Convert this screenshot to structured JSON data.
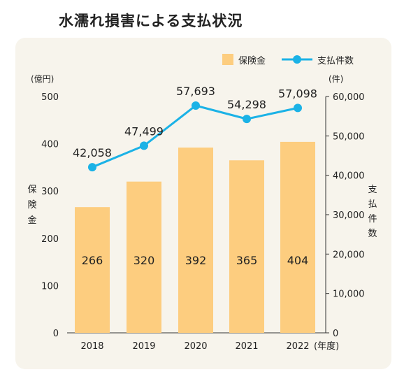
{
  "title": "水濡れ損害による支払状況",
  "chart_data": {
    "type": "bar+line",
    "categories": [
      "2018",
      "2019",
      "2020",
      "2021",
      "2022"
    ],
    "x_unit": "(年度)",
    "series": [
      {
        "name": "保険金",
        "type": "bar",
        "axis": "left",
        "values": [
          266,
          320,
          392,
          365,
          404
        ],
        "color": "#fdcd7f"
      },
      {
        "name": "支払件数",
        "type": "line",
        "axis": "right",
        "values": [
          42058,
          47499,
          57693,
          54298,
          57098
        ],
        "labels": [
          "42,058",
          "47,499",
          "57,693",
          "54,298",
          "57,098"
        ],
        "color": "#1bb2e6"
      }
    ],
    "y_left": {
      "label": "保険金",
      "unit": "(億円)",
      "range": [
        0,
        500
      ],
      "ticks": [
        "0",
        "100",
        "200",
        "300",
        "400",
        "500"
      ]
    },
    "y_right": {
      "label": "支払件数",
      "unit": "(件)",
      "range": [
        0,
        60000
      ],
      "ticks": [
        "0",
        "10,000",
        "20,000",
        "30,000",
        "40,000",
        "50,000",
        "60,000"
      ]
    },
    "legend_position": "top-right",
    "grid": false
  }
}
